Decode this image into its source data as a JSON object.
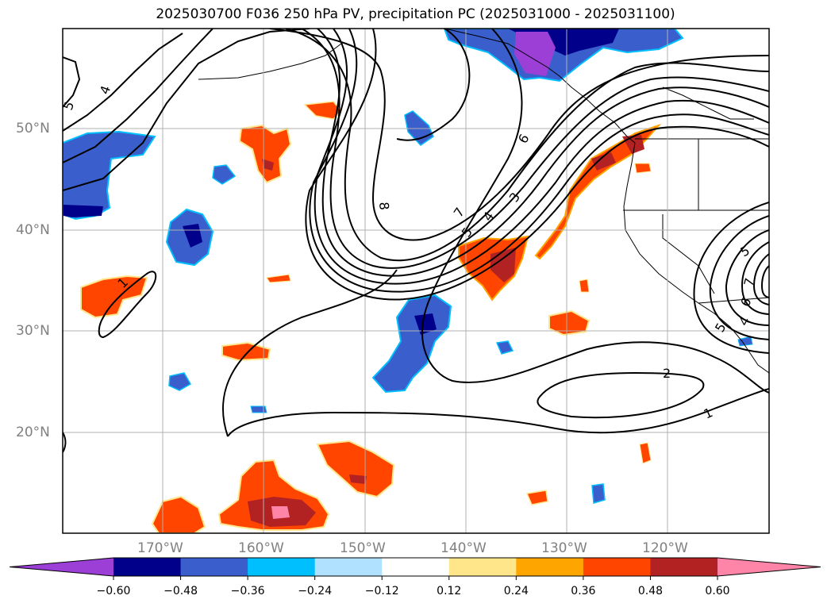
{
  "title": "2025030700 F036 250 hPa PV, precipitation PC (2025031000 - 2025031100)",
  "lat_labels": [
    "50°N",
    "40°N",
    "30°N",
    "20°N"
  ],
  "lon_labels": [
    "170°W",
    "160°W",
    "150°W",
    "140°W",
    "130°W",
    "120°W"
  ],
  "colorbar": {
    "ticks": [
      "−0.60",
      "−0.48",
      "−0.36",
      "−0.24",
      "−0.12",
      "0.12",
      "0.24",
      "0.36",
      "0.48",
      "0.60"
    ],
    "colors": [
      "#9b3fd6",
      "#00008b",
      "#3a5fcd",
      "#00bfff",
      "#b0e2ff",
      "#ffffff",
      "#ffe68a",
      "#ffa500",
      "#ff4500",
      "#b22222",
      "#ff85a8"
    ]
  },
  "contour_labels": [
    "4",
    "5",
    "8",
    "6",
    "7",
    "4",
    "3",
    "5",
    "1",
    "2",
    "1",
    "5",
    "7",
    "6",
    "4",
    "5"
  ]
}
